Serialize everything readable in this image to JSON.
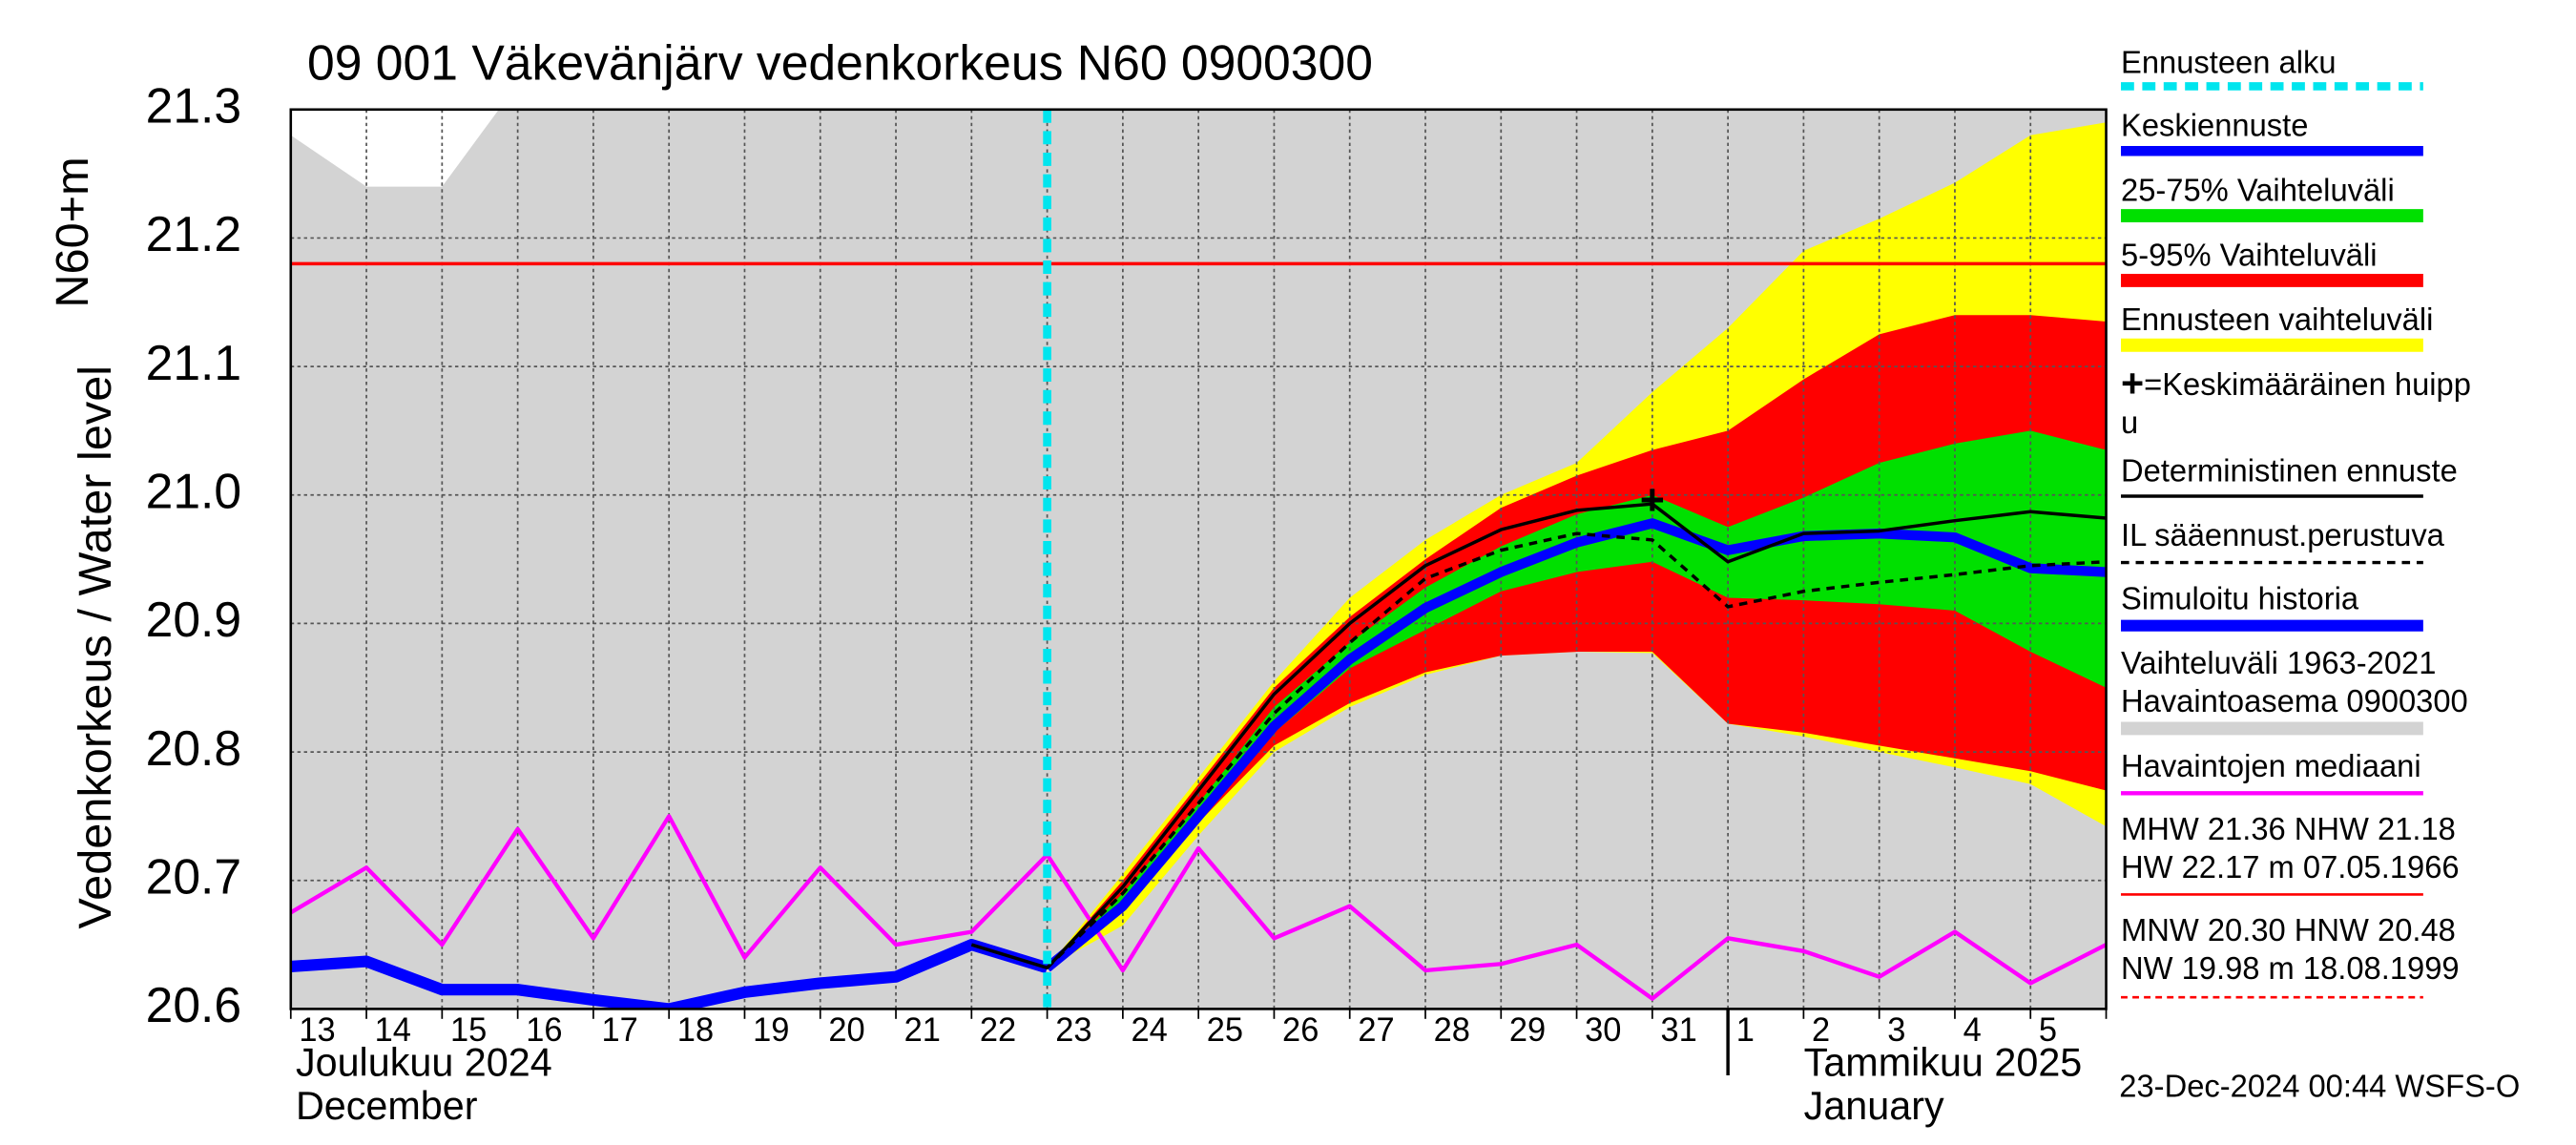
{
  "chart_data": {
    "type": "line",
    "title": "09 001 Väkevänjärv vedenkorkeus N60 0900300",
    "y_label": "Vedenkorkeus / Water level",
    "y_unit_label": "N60+m",
    "month_labels": [
      "Joulukuu  2024",
      "December",
      "Tammikuu  2025",
      "January"
    ],
    "footer": "23-Dec-2024 00:44 WSFS-O",
    "categories": [
      "13",
      "14",
      "15",
      "16",
      "17",
      "18",
      "19",
      "20",
      "21",
      "22",
      "23",
      "24",
      "25",
      "26",
      "27",
      "28",
      "29",
      "30",
      "31",
      "1",
      "2",
      "3",
      "4",
      "5",
      null
    ],
    "ylim": [
      20.6,
      21.3
    ],
    "yticks": [
      20.6,
      20.7,
      20.8,
      20.9,
      {
        "value": 21.0,
        "label": "21.0"
      },
      21.1,
      21.2,
      21.3
    ],
    "grid": true,
    "history_band": {
      "name": "Vaihteluväli 1963-2021",
      "name2": " Havaintoasema 0900300",
      "color": "#d3d3d3",
      "upper": [
        21.28,
        21.24,
        21.24,
        21.32,
        21.32,
        21.32,
        21.32,
        21.32,
        21.32,
        21.32,
        21.32,
        21.32,
        21.32,
        21.32,
        21.32,
        21.32,
        21.32,
        21.32,
        21.32,
        21.32,
        21.32,
        21.32,
        21.32,
        21.32,
        21.32
      ]
    },
    "bands": [
      {
        "name": "Ennusteen vaihteluväli",
        "color": "#ffff00",
        "upper": [
          null,
          null,
          null,
          null,
          null,
          null,
          null,
          null,
          null,
          null,
          20.632,
          20.705,
          20.78,
          20.855,
          20.92,
          20.965,
          21.0,
          21.025,
          21.08,
          21.13,
          21.19,
          21.215,
          21.243,
          21.28,
          21.29
        ],
        "lower": [
          null,
          null,
          null,
          null,
          null,
          null,
          null,
          null,
          null,
          null,
          20.632,
          20.665,
          20.735,
          20.8,
          20.835,
          20.86,
          20.875,
          20.878,
          20.877,
          20.822,
          20.812,
          20.8,
          20.788,
          20.775,
          20.742
        ]
      },
      {
        "name": "5-95% Vaihteluväli",
        "color": "#ff0000",
        "upper": [
          null,
          null,
          null,
          null,
          null,
          null,
          null,
          null,
          null,
          null,
          20.632,
          20.7,
          20.775,
          20.85,
          20.905,
          20.95,
          20.99,
          21.015,
          21.035,
          21.05,
          21.09,
          21.125,
          21.14,
          21.14,
          21.135
        ],
        "lower": [
          null,
          null,
          null,
          null,
          null,
          null,
          null,
          null,
          null,
          null,
          20.632,
          20.675,
          20.745,
          20.805,
          20.838,
          20.862,
          20.875,
          20.878,
          20.878,
          20.822,
          20.815,
          20.805,
          20.795,
          20.785,
          20.77
        ]
      },
      {
        "name": "25-75% Vaihteluväli",
        "color": "#00e000",
        "upper": [
          null,
          null,
          null,
          null,
          null,
          null,
          null,
          null,
          null,
          null,
          20.632,
          20.69,
          20.76,
          20.835,
          20.885,
          20.928,
          20.96,
          20.985,
          21.0,
          20.975,
          20.998,
          21.025,
          21.04,
          21.05,
          21.035
        ],
        "lower": [
          null,
          null,
          null,
          null,
          null,
          null,
          null,
          null,
          null,
          null,
          20.632,
          20.68,
          20.748,
          20.815,
          20.865,
          20.895,
          20.925,
          20.94,
          20.948,
          20.92,
          20.918,
          20.915,
          20.91,
          20.878,
          20.85
        ]
      }
    ],
    "nhw_line": {
      "value": 21.18,
      "color": "#ff0000"
    },
    "series": [
      {
        "name": "Havaintojen mediaani",
        "color": "#ff00ff",
        "width": 2.5,
        "dash": false,
        "values": [
          20.675,
          20.71,
          20.65,
          20.74,
          20.655,
          20.75,
          20.64,
          20.71,
          20.65,
          20.66,
          20.72,
          20.63,
          20.725,
          20.655,
          20.68,
          20.63,
          20.635,
          20.65,
          20.608,
          20.655,
          20.645,
          20.625,
          20.66,
          20.62,
          20.65
        ]
      },
      {
        "name": "Simuloitu historia",
        "color": "#0000ff",
        "width": 7,
        "dash": false,
        "values": [
          20.633,
          20.637,
          20.615,
          20.615,
          20.607,
          20.6,
          20.613,
          20.62,
          20.625,
          20.65,
          20.632,
          null,
          null,
          null,
          null,
          null,
          null,
          null,
          null,
          null,
          null,
          null,
          null,
          null,
          null
        ]
      },
      {
        "name": "Keskiennuste",
        "color": "#0000ff",
        "width": 6,
        "dash": false,
        "values": [
          null,
          null,
          null,
          null,
          null,
          null,
          null,
          null,
          null,
          null,
          20.632,
          20.68,
          20.75,
          20.82,
          20.872,
          20.912,
          20.94,
          20.963,
          20.978,
          20.957,
          20.968,
          20.97,
          20.967,
          20.943,
          20.94
        ]
      },
      {
        "name": "Deterministinen ennuste",
        "color": "#000000",
        "width": 2,
        "dash": false,
        "values": [
          null,
          null,
          null,
          null,
          null,
          null,
          null,
          null,
          null,
          20.65,
          20.632,
          20.695,
          20.77,
          20.845,
          20.9,
          20.945,
          20.973,
          20.988,
          20.993,
          20.948,
          20.97,
          20.972,
          20.98,
          20.987,
          20.982
        ]
      },
      {
        "name": "IL sääennust.perustuva",
        "color": "#000000",
        "width": 2,
        "dash": true,
        "values": [
          null,
          null,
          null,
          null,
          null,
          null,
          null,
          null,
          null,
          null,
          20.632,
          20.69,
          20.76,
          20.83,
          20.885,
          20.935,
          20.957,
          20.97,
          20.965,
          20.913,
          20.925,
          20.932,
          20.938,
          20.945,
          20.948
        ]
      }
    ],
    "forecast_start": {
      "name": "Ennusteen alku",
      "color": "#00e5ee",
      "at": "23"
    },
    "peak": {
      "name_lines": [
        "=Keskimääräinen huipp",
        "u"
      ],
      "symbol": "+",
      "at": "31",
      "value": 20.995
    },
    "stats": [
      "MHW  21.36 NHW  21.18",
      "HW  22.17 m 07.05.1966",
      "MNW  20.30 HNW  20.48",
      "NW  19.98 m 18.08.1999"
    ]
  }
}
